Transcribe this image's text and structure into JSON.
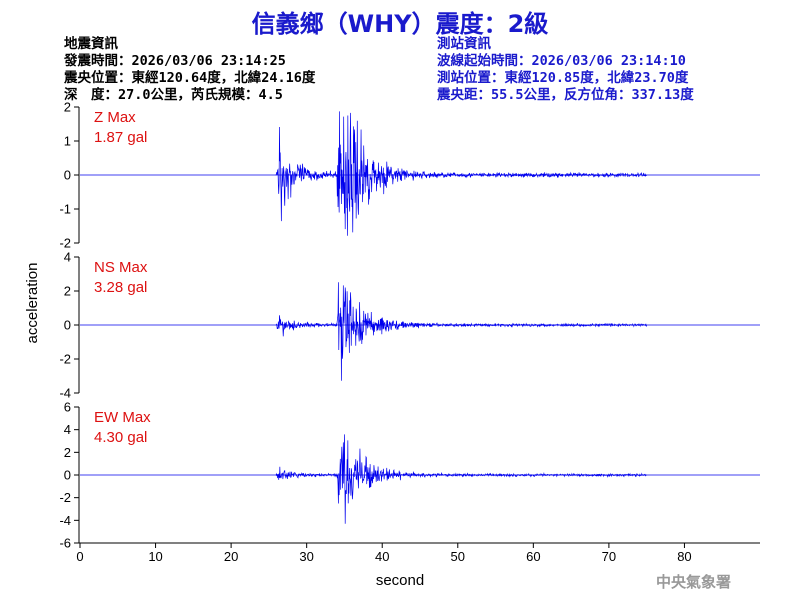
{
  "title": "信義鄉（WHY）震度：2級",
  "quake_info": {
    "heading": "地震資訊",
    "origin_time": "發震時間：2026/03/06 23:14:25",
    "epicenter": "震央位置：東經120.64度，北緯24.16度",
    "depth_magnitude": "深　度：27.0公里，芮氏規模：4.5"
  },
  "station_info": {
    "heading": "測站資訊",
    "wave_start": "波線起始時間：2026/03/06 23:14:10",
    "location": "測站位置：東經120.85度，北緯23.70度",
    "distance": "震央距：55.5公里，反方位角：337.13度"
  },
  "footer": "中央氣象署",
  "colors": {
    "trace": "#0000ee",
    "annotation": "#dd1111",
    "title": "#1a1acc"
  },
  "chart_data": [
    {
      "type": "line",
      "annotation": [
        "Z Max",
        "1.87 gal"
      ],
      "xlim": [
        0,
        90
      ],
      "ylim": [
        -2,
        2
      ],
      "yticks": [
        -2,
        -1,
        0,
        1,
        2
      ],
      "peak": 1.87,
      "events": [
        {
          "start": 26.0,
          "amp": 0.8
        },
        {
          "start": 34.0,
          "amp": 1.87
        }
      ]
    },
    {
      "type": "line",
      "annotation": [
        "NS Max",
        "3.28 gal"
      ],
      "xlim": [
        0,
        90
      ],
      "ylim": [
        -4,
        4
      ],
      "yticks": [
        -4,
        -2,
        0,
        2,
        4
      ],
      "peak": 3.28,
      "events": [
        {
          "start": 26.0,
          "amp": 0.6
        },
        {
          "start": 34.0,
          "amp": 3.28
        }
      ]
    },
    {
      "type": "line",
      "annotation": [
        "EW Max",
        "4.30 gal"
      ],
      "xlim": [
        0,
        90
      ],
      "ylim": [
        -6,
        6
      ],
      "yticks": [
        -6,
        -4,
        -2,
        0,
        2,
        4,
        6
      ],
      "peak": 4.3,
      "events": [
        {
          "start": 26.0,
          "amp": 0.5
        },
        {
          "start": 34.0,
          "amp": 4.3
        }
      ]
    }
  ],
  "x_axis": {
    "label": "second",
    "ticks": [
      0,
      10,
      20,
      30,
      40,
      50,
      60,
      70,
      80
    ]
  },
  "y_axis": {
    "label": "acceleration"
  }
}
